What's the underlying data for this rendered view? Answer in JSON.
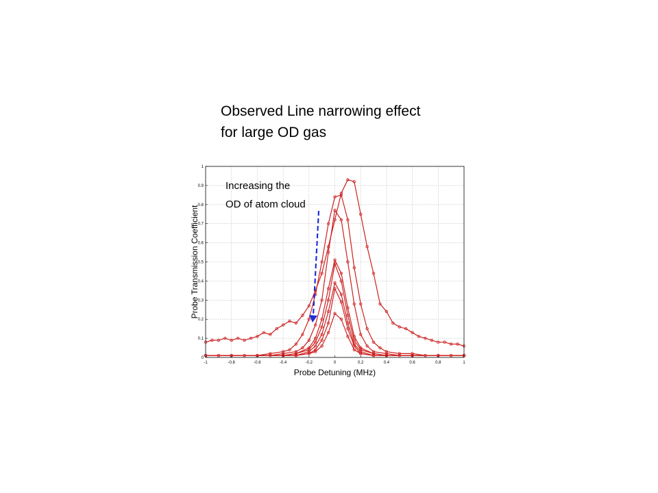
{
  "slide": {
    "title_line1": "Observed Line narrowing effect",
    "title_line2": "for large OD gas"
  },
  "colors": {
    "series": "#cc1f1f",
    "arrow": "#1f2fd8",
    "grid": "#b9b9b9"
  },
  "chart_data": {
    "type": "line",
    "xlabel": "Probe Detuning (MHz)",
    "ylabel": "Probe Transmission Coefficient",
    "xlim": [
      -1,
      1
    ],
    "ylim": [
      0,
      1
    ],
    "xticks": [
      -1,
      -0.8,
      -0.6,
      -0.4,
      -0.2,
      0,
      0.2,
      0.4,
      0.6,
      0.8,
      1
    ],
    "xtick_labels": [
      "-1",
      "-0.8",
      "-0.6",
      "-0.4",
      "-0.2",
      "0",
      "0.2",
      "0.4",
      "0.6",
      "0.8",
      "1"
    ],
    "yticks": [
      0,
      0.1,
      0.2,
      0.3,
      0.4,
      0.5,
      0.6,
      0.7,
      0.8,
      0.9,
      1
    ],
    "ytick_labels": [
      "0",
      "0.1",
      "0.2",
      "0.3",
      "0.4",
      "0.5",
      "0.6",
      "0.7",
      "0.8",
      "0.9",
      "1"
    ],
    "grid": true,
    "annotation": {
      "line1": "Increasing the",
      "line2": "OD of atom cloud",
      "arrow": "downward"
    },
    "series": [
      {
        "x": [
          -1,
          -0.95,
          -0.9,
          -0.85,
          -0.8,
          -0.75,
          -0.7,
          -0.65,
          -0.6,
          -0.55,
          -0.5,
          -0.45,
          -0.4,
          -0.35,
          -0.3,
          -0.25,
          -0.2,
          -0.15,
          -0.1,
          -0.05,
          0,
          0.05,
          0.1,
          0.15,
          0.2,
          0.25,
          0.3,
          0.35,
          0.4,
          0.45,
          0.5,
          0.55,
          0.6,
          0.65,
          0.7,
          0.75,
          0.8,
          0.85,
          0.9,
          0.95,
          1
        ],
        "y": [
          0.08,
          0.09,
          0.09,
          0.1,
          0.09,
          0.1,
          0.09,
          0.1,
          0.11,
          0.13,
          0.12,
          0.15,
          0.17,
          0.19,
          0.18,
          0.22,
          0.27,
          0.35,
          0.44,
          0.58,
          0.72,
          0.86,
          0.93,
          0.92,
          0.75,
          0.58,
          0.44,
          0.28,
          0.24,
          0.18,
          0.16,
          0.15,
          0.13,
          0.11,
          0.1,
          0.09,
          0.08,
          0.08,
          0.07,
          0.07,
          0.06
        ]
      },
      {
        "x": [
          -1,
          -0.9,
          -0.8,
          -0.7,
          -0.6,
          -0.5,
          -0.4,
          -0.35,
          -0.3,
          -0.25,
          -0.2,
          -0.15,
          -0.1,
          -0.05,
          0,
          0.05,
          0.1,
          0.15,
          0.2,
          0.25,
          0.3,
          0.35,
          0.4,
          0.5,
          0.6,
          0.7,
          0.8,
          0.9,
          1
        ],
        "y": [
          0.01,
          0.01,
          0.01,
          0.01,
          0.01,
          0.02,
          0.03,
          0.04,
          0.07,
          0.12,
          0.2,
          0.33,
          0.5,
          0.7,
          0.84,
          0.85,
          0.72,
          0.47,
          0.28,
          0.15,
          0.08,
          0.05,
          0.03,
          0.02,
          0.02,
          0.01,
          0.01,
          0.01,
          0.01
        ]
      },
      {
        "x": [
          -1,
          -0.9,
          -0.8,
          -0.7,
          -0.6,
          -0.5,
          -0.4,
          -0.3,
          -0.25,
          -0.2,
          -0.15,
          -0.1,
          -0.05,
          0,
          0.05,
          0.1,
          0.15,
          0.2,
          0.25,
          0.3,
          0.4,
          0.5,
          0.6,
          0.7,
          0.8,
          0.9,
          1
        ],
        "y": [
          0.01,
          0.01,
          0.01,
          0.01,
          0.01,
          0.01,
          0.02,
          0.03,
          0.05,
          0.09,
          0.17,
          0.3,
          0.55,
          0.77,
          0.72,
          0.5,
          0.28,
          0.12,
          0.06,
          0.03,
          0.02,
          0.01,
          0.01,
          0.01,
          0.01,
          0.01,
          0.01
        ]
      },
      {
        "x": [
          -1,
          -0.8,
          -0.6,
          -0.4,
          -0.3,
          -0.2,
          -0.15,
          -0.1,
          -0.05,
          0,
          0.05,
          0.1,
          0.15,
          0.2,
          0.3,
          0.4,
          0.6,
          0.8,
          1
        ],
        "y": [
          0.01,
          0.01,
          0.01,
          0.01,
          0.02,
          0.05,
          0.1,
          0.2,
          0.36,
          0.51,
          0.44,
          0.26,
          0.11,
          0.05,
          0.02,
          0.01,
          0.01,
          0.01,
          0.01
        ]
      },
      {
        "x": [
          -1,
          -0.8,
          -0.6,
          -0.4,
          -0.3,
          -0.2,
          -0.15,
          -0.1,
          -0.05,
          0,
          0.05,
          0.1,
          0.15,
          0.2,
          0.3,
          0.4,
          0.6,
          0.8,
          1
        ],
        "y": [
          0.01,
          0.01,
          0.01,
          0.01,
          0.02,
          0.04,
          0.08,
          0.16,
          0.3,
          0.49,
          0.4,
          0.22,
          0.09,
          0.04,
          0.02,
          0.01,
          0.01,
          0.01,
          0.01
        ]
      },
      {
        "x": [
          -1,
          -0.8,
          -0.6,
          -0.4,
          -0.3,
          -0.2,
          -0.15,
          -0.1,
          -0.05,
          0,
          0.05,
          0.1,
          0.15,
          0.2,
          0.3,
          0.4,
          0.6,
          0.8,
          1
        ],
        "y": [
          0.01,
          0.01,
          0.01,
          0.01,
          0.01,
          0.03,
          0.06,
          0.12,
          0.24,
          0.39,
          0.33,
          0.18,
          0.07,
          0.03,
          0.01,
          0.01,
          0.01,
          0.01,
          0.01
        ]
      },
      {
        "x": [
          -1,
          -0.8,
          -0.6,
          -0.4,
          -0.3,
          -0.2,
          -0.15,
          -0.1,
          -0.05,
          0,
          0.05,
          0.1,
          0.15,
          0.2,
          0.3,
          0.4,
          0.6,
          0.8,
          1
        ],
        "y": [
          0.01,
          0.01,
          0.01,
          0.01,
          0.01,
          0.02,
          0.04,
          0.09,
          0.18,
          0.36,
          0.29,
          0.15,
          0.06,
          0.02,
          0.01,
          0.01,
          0.01,
          0.01,
          0.01
        ]
      },
      {
        "x": [
          -1,
          -0.8,
          -0.6,
          -0.4,
          -0.3,
          -0.2,
          -0.15,
          -0.1,
          -0.05,
          0,
          0.05,
          0.1,
          0.15,
          0.2,
          0.3,
          0.4,
          0.6,
          0.8,
          1
        ],
        "y": [
          0.01,
          0.01,
          0.01,
          0.01,
          0.01,
          0.02,
          0.03,
          0.06,
          0.13,
          0.23,
          0.2,
          0.11,
          0.04,
          0.02,
          0.01,
          0.01,
          0.01,
          0.01,
          0.01
        ]
      }
    ]
  }
}
